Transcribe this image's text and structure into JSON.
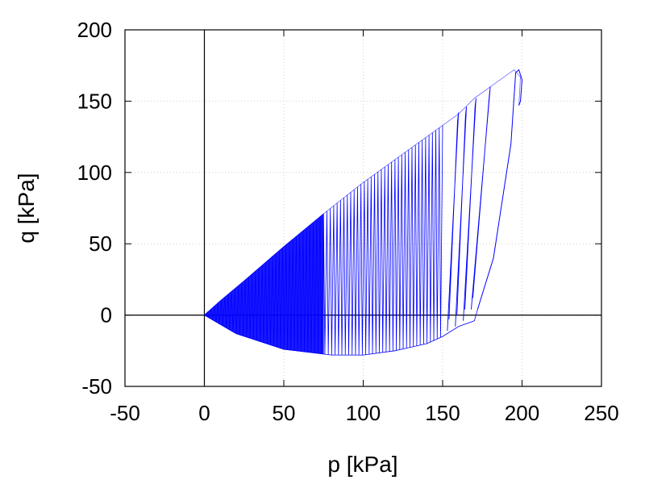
{
  "chart_data": {
    "type": "line",
    "title": "",
    "xlabel": "p [kPa]",
    "ylabel": "q [kPa]",
    "xlim": [
      -50,
      250
    ],
    "ylim": [
      -50,
      200
    ],
    "xticks": [
      "-50",
      "0",
      "50",
      "100",
      "150",
      "200",
      "250"
    ],
    "yticks": [
      "-50",
      "0",
      "50",
      "100",
      "150",
      "200"
    ],
    "grid": true,
    "legend": "none",
    "zero_lines": true,
    "series": [
      {
        "color": "#0000ff",
        "description_free": true,
        "envelope": {
          "upper": [
            [
              0,
              0
            ],
            [
              10,
              10
            ],
            [
              25,
              24
            ],
            [
              50,
              48
            ],
            [
              75,
              71
            ],
            [
              100,
              93
            ],
            [
              125,
              113
            ],
            [
              150,
              133
            ],
            [
              160,
              141
            ],
            [
              170,
              152
            ],
            [
              180,
              160
            ],
            [
              195,
              172
            ],
            [
              199,
              167
            ],
            [
              198,
              147
            ]
          ],
          "lower": [
            [
              0,
              0
            ],
            [
              20,
              -13
            ],
            [
              50,
              -24
            ],
            [
              80,
              -28
            ],
            [
              100,
              -28
            ],
            [
              120,
              -25
            ],
            [
              140,
              -20
            ],
            [
              150,
              -15
            ],
            [
              160,
              -8
            ],
            [
              170,
              -4
            ],
            [
              172,
              4
            ]
          ]
        },
        "cycles": [
          {
            "p_lo": 168,
            "p_hi": 180,
            "q_lo": 4,
            "q_hi": 160
          },
          {
            "p_lo": 163,
            "p_hi": 171,
            "q_lo": -4,
            "q_hi": 152
          },
          {
            "p_lo": 158,
            "p_hi": 165,
            "q_lo": -8,
            "q_hi": 146
          },
          {
            "p_lo": 153,
            "p_hi": 160,
            "q_lo": -11,
            "q_hi": 142
          }
        ],
        "final_loop": [
          [
            172,
            4
          ],
          [
            182,
            40
          ],
          [
            193,
            120
          ],
          [
            196,
            170
          ],
          [
            198,
            172
          ],
          [
            200,
            165
          ],
          [
            199,
            150
          ],
          [
            198,
            147
          ]
        ]
      }
    ]
  }
}
